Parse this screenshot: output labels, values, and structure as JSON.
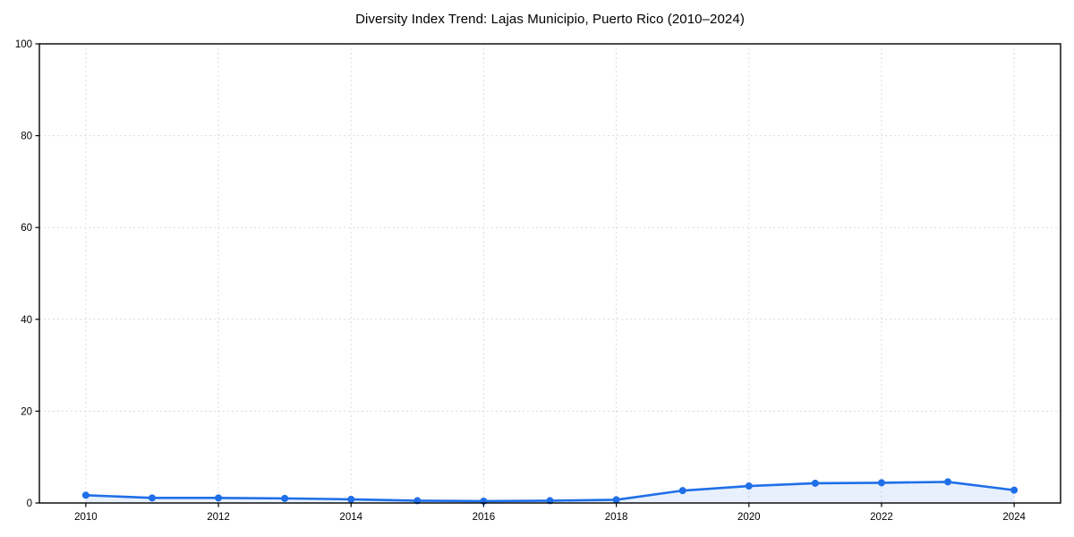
{
  "chart_data": {
    "type": "line",
    "title": "Diversity Index Trend: Lajas Municipio, Puerto Rico (2010–2024)",
    "xlabel": "",
    "ylabel": "",
    "x": [
      2010,
      2011,
      2012,
      2013,
      2014,
      2015,
      2016,
      2017,
      2018,
      2019,
      2020,
      2021,
      2022,
      2023,
      2024
    ],
    "series": [
      {
        "name": "Diversity Index",
        "values": [
          1.7,
          1.1,
          1.1,
          1.0,
          0.8,
          0.5,
          0.4,
          0.5,
          0.7,
          2.7,
          3.7,
          4.3,
          4.4,
          4.6,
          2.8
        ]
      }
    ],
    "xlim": [
      2009.3,
      2024.7
    ],
    "ylim": [
      0,
      100
    ],
    "xticks": [
      2010,
      2012,
      2014,
      2016,
      2018,
      2020,
      2022,
      2024
    ],
    "yticks": [
      0,
      20,
      40,
      60,
      80,
      100
    ],
    "grid": true,
    "legend": "none",
    "line_color": "#1f6fe8",
    "fill_color": "rgba(31, 111, 232, 0.10)",
    "marker": "circle",
    "marker_size": 4,
    "line_width": 2.6
  }
}
